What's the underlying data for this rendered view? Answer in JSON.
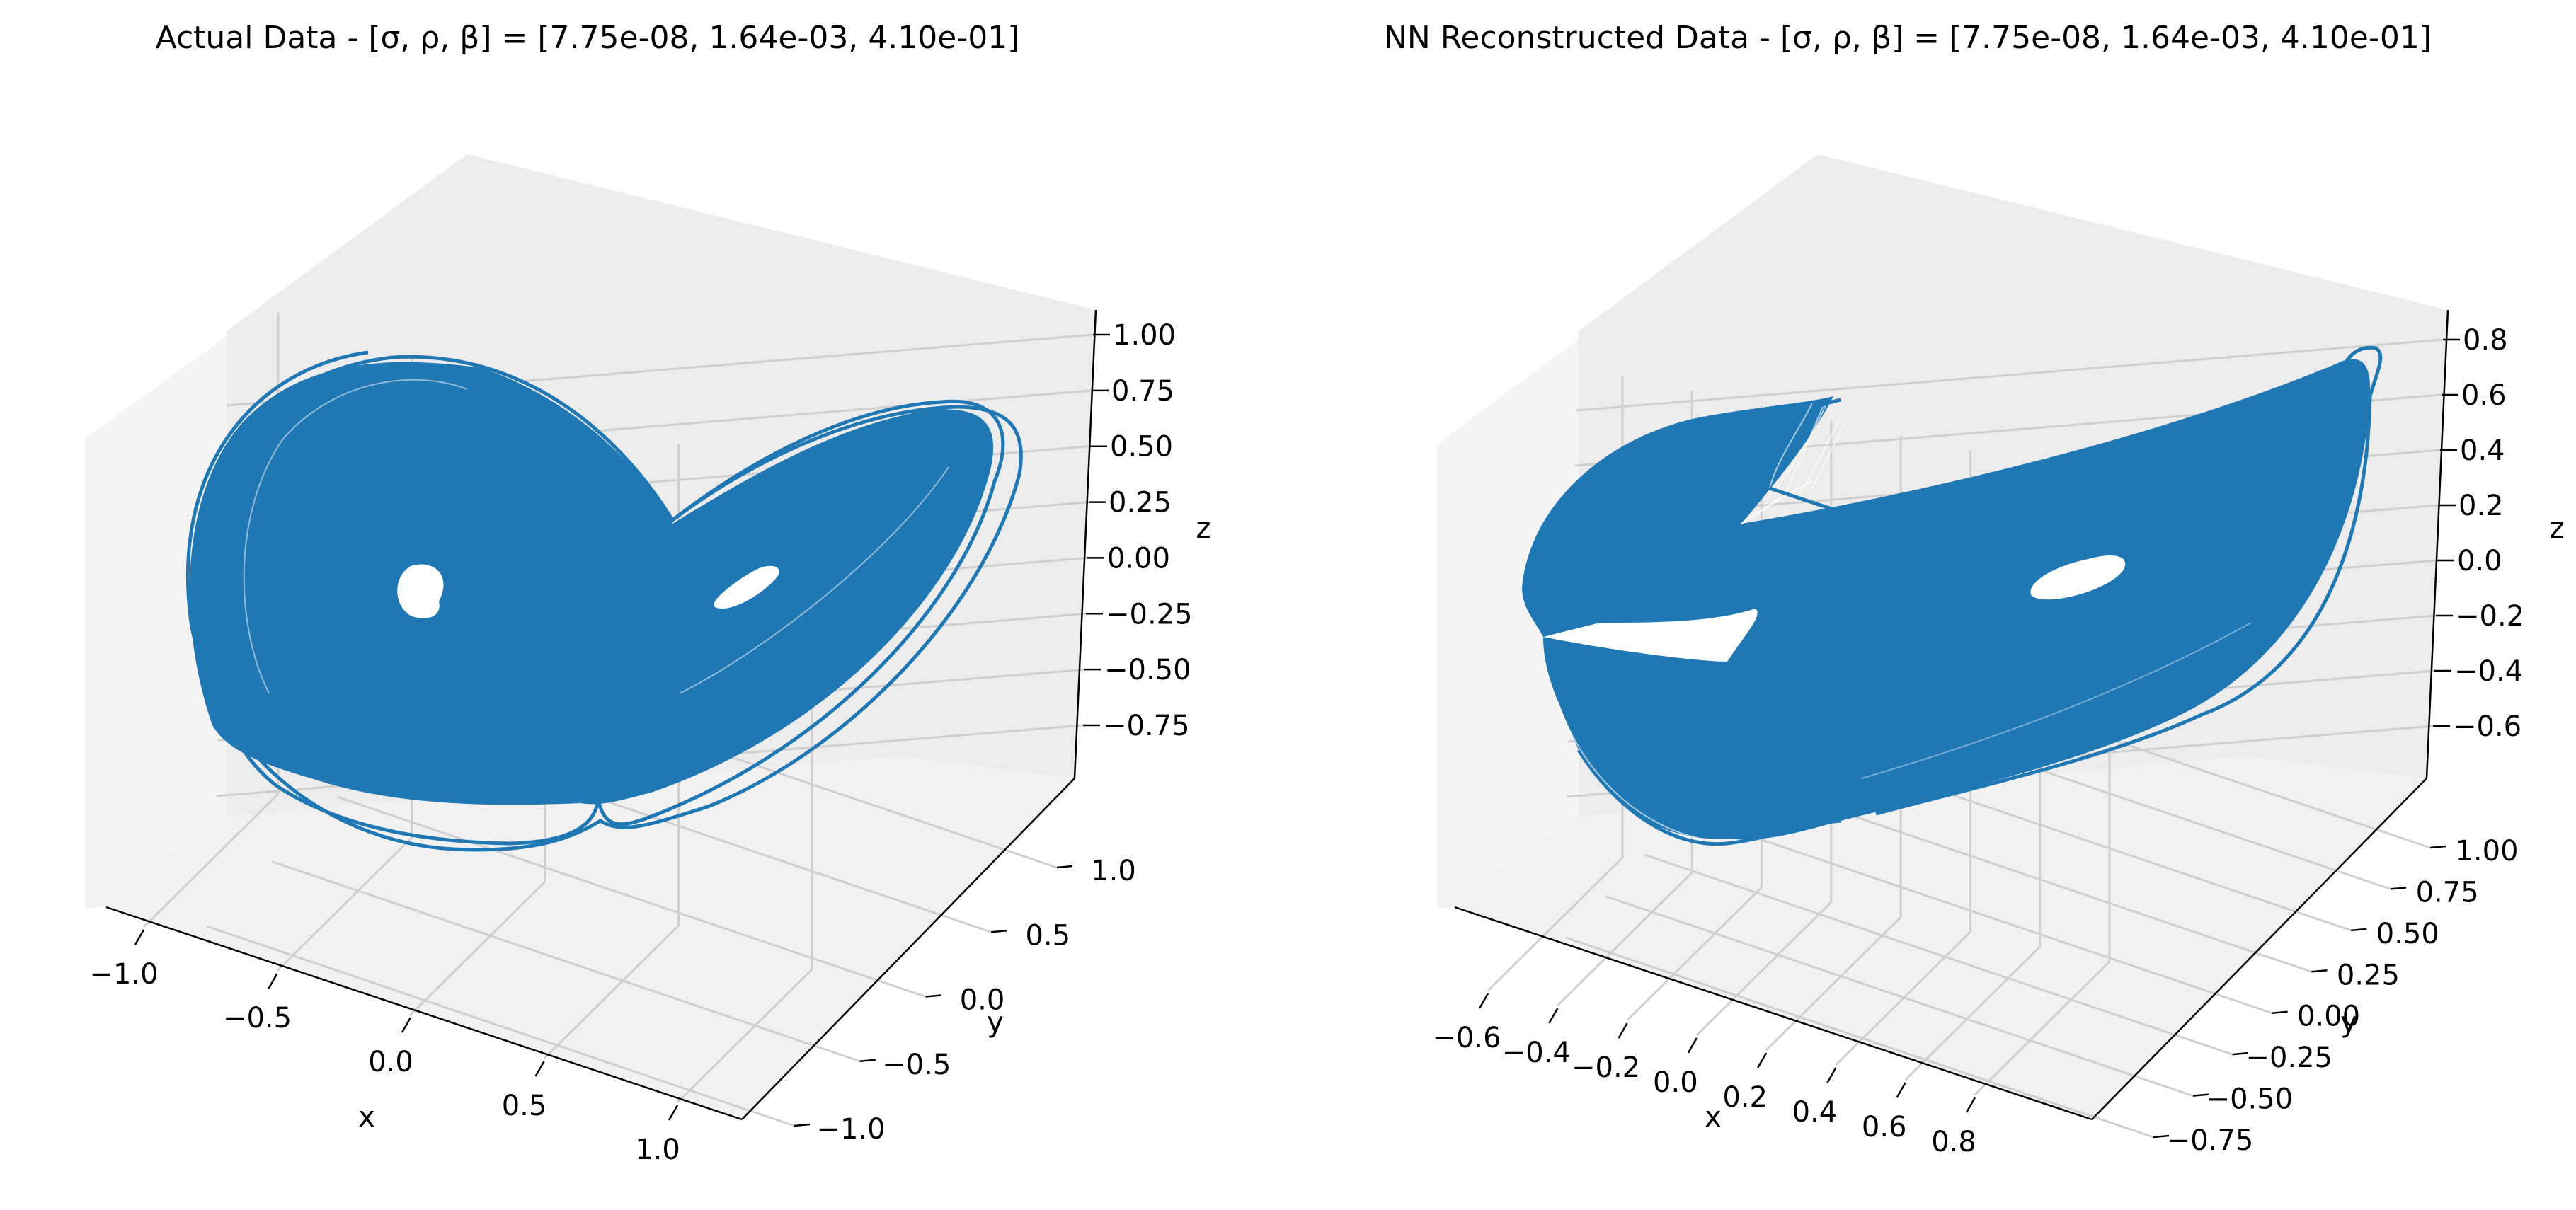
{
  "chart_data": [
    {
      "type": "line",
      "projection": "3d",
      "title": "Actual Data - [σ, ρ, β] = [7.75e-08, 1.64e-03, 4.10e-01]",
      "xlabel": "x",
      "ylabel": "y",
      "zlabel": "z",
      "x_ticks": [
        "−1.0",
        "−0.5",
        "0.0",
        "0.5",
        "1.0"
      ],
      "y_ticks": [
        "−1.0",
        "−0.5",
        "0.0",
        "0.5",
        "1.0"
      ],
      "z_ticks": [
        "−0.75",
        "−0.50",
        "−0.25",
        "0.00",
        "0.25",
        "0.50",
        "0.75",
        "1.00"
      ],
      "xlim": [
        -1.15,
        1.15
      ],
      "ylim": [
        -1.25,
        1.25
      ],
      "zlim": [
        -0.95,
        1.05
      ],
      "grid": true,
      "series_color": "#1f77b4",
      "pane_color": "#f2f2f2",
      "series": [
        {
          "description_points_xyz": [
            [
              -0.74,
              0.05,
              0.02
            ],
            [
              0.66,
              0.04,
              0.02
            ],
            [
              -0.95,
              0.0,
              0.0
            ],
            [
              0.9,
              0.0,
              0.05
            ]
          ]
        }
      ]
    },
    {
      "type": "line",
      "projection": "3d",
      "title": "NN Reconstructed Data - [σ, ρ, β] = [7.75e-08, 1.64e-03, 4.10e-01]",
      "xlabel": "x",
      "ylabel": "y",
      "zlabel": "z",
      "x_ticks": [
        "−0.6",
        "−0.4",
        "−0.2",
        "0.0",
        "0.2",
        "0.4",
        "0.6",
        "0.8"
      ],
      "y_ticks": [
        "−0.75",
        "−0.50",
        "−0.25",
        "0.00",
        "0.25",
        "0.50",
        "0.75",
        "1.00"
      ],
      "z_ticks": [
        "−0.6",
        "−0.4",
        "−0.2",
        "0.0",
        "0.2",
        "0.4",
        "0.6",
        "0.8"
      ],
      "xlim": [
        -0.7,
        0.95
      ],
      "ylim": [
        -0.85,
        1.1
      ],
      "zlim": [
        -0.75,
        0.85
      ],
      "grid": true,
      "series_color": "#1f77b4",
      "pane_color": "#f2f2f2",
      "series": [
        {
          "description_points_xyz": [
            [
              -0.45,
              0.1,
              0.0
            ],
            [
              0.55,
              0.1,
              0.05
            ]
          ]
        }
      ]
    }
  ]
}
